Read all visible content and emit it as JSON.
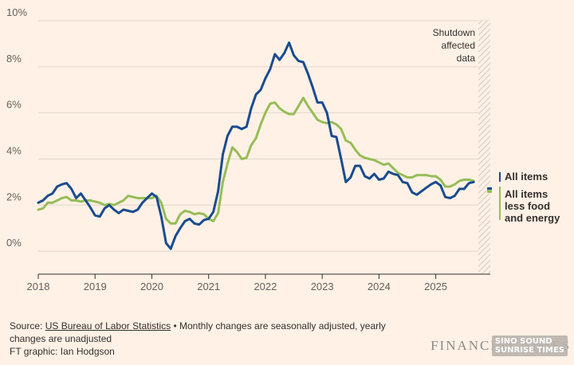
{
  "chart_data": {
    "type": "line",
    "ylim": [
      -1,
      10
    ],
    "xlim": [
      2018.0,
      2025.96
    ],
    "yticks": [
      0,
      2,
      4,
      6,
      8,
      10
    ],
    "ytick_labels": [
      "0%",
      "2%",
      "4%",
      "6%",
      "8%",
      "10%"
    ],
    "xticks": [
      2018,
      2019,
      2020,
      2021,
      2022,
      2023,
      2024,
      2025
    ],
    "xtick_labels": [
      "2018",
      "2019",
      "2020",
      "2021",
      "2022",
      "2023",
      "2024",
      "2025"
    ],
    "shutdown_start": 2025.75,
    "shutdown_label": [
      "Shutdown",
      "affected",
      "data"
    ],
    "series": [
      {
        "name": "All items",
        "label_lines": [
          "All items"
        ],
        "color": "#1a4b8f",
        "start": 2018.0,
        "values": [
          2.1,
          2.2,
          2.4,
          2.5,
          2.8,
          2.9,
          2.95,
          2.7,
          2.3,
          2.5,
          2.2,
          1.9,
          1.55,
          1.5,
          1.85,
          2.0,
          1.8,
          1.65,
          1.8,
          1.75,
          1.7,
          1.8,
          2.1,
          2.3,
          2.5,
          2.35,
          1.5,
          0.35,
          0.1,
          0.65,
          1.0,
          1.3,
          1.4,
          1.2,
          1.15,
          1.35,
          1.4,
          1.7,
          2.6,
          4.2,
          5.0,
          5.4,
          5.4,
          5.3,
          5.4,
          6.2,
          6.8,
          7.0,
          7.5,
          7.9,
          8.55,
          8.3,
          8.6,
          9.05,
          8.5,
          8.25,
          8.2,
          7.7,
          7.1,
          6.45,
          6.45,
          6.0,
          5.0,
          4.95,
          4.0,
          3.0,
          3.2,
          3.7,
          3.7,
          3.25,
          3.15,
          3.35,
          3.1,
          3.15,
          3.45,
          3.35,
          3.3,
          3.0,
          2.95,
          2.55,
          2.45,
          2.6,
          2.75,
          2.9,
          3.0,
          2.85,
          2.35,
          2.3,
          2.4,
          2.7,
          2.7,
          2.95,
          3.0
        ],
        "end_value": 2.7
      },
      {
        "name": "All items less food and energy",
        "label_lines": [
          "All items",
          "less food",
          "and energy"
        ],
        "color": "#96bd58",
        "start": 2018.0,
        "values": [
          1.8,
          1.85,
          2.1,
          2.1,
          2.2,
          2.3,
          2.35,
          2.2,
          2.2,
          2.15,
          2.2,
          2.2,
          2.15,
          2.1,
          2.0,
          2.05,
          2.0,
          2.1,
          2.2,
          2.4,
          2.35,
          2.3,
          2.3,
          2.3,
          2.3,
          2.4,
          2.1,
          1.4,
          1.2,
          1.2,
          1.6,
          1.75,
          1.7,
          1.6,
          1.65,
          1.6,
          1.4,
          1.3,
          1.65,
          3.0,
          3.8,
          4.5,
          4.3,
          4.0,
          4.05,
          4.6,
          4.9,
          5.5,
          6.0,
          6.4,
          6.45,
          6.2,
          6.05,
          5.95,
          5.95,
          6.3,
          6.65,
          6.3,
          6.0,
          5.7,
          5.6,
          5.55,
          5.6,
          5.5,
          5.3,
          4.8,
          4.7,
          4.4,
          4.15,
          4.05,
          4.0,
          3.95,
          3.85,
          3.75,
          3.8,
          3.6,
          3.4,
          3.3,
          3.2,
          3.2,
          3.3,
          3.3,
          3.3,
          3.25,
          3.25,
          3.1,
          2.8,
          2.8,
          2.9,
          3.05,
          3.1,
          3.1,
          3.05
        ],
        "end_value": 2.6
      }
    ]
  },
  "footer": {
    "source_prefix": "Source: ",
    "source_link": "US Bureau of Labor Statistics",
    "source_note": " • Monthly changes are seasonally adjusted, yearly changes are unadjusted",
    "credit": "FT graphic: Ian Hodgson",
    "brand": "FINANCIAL TIMES",
    "watermark": [
      "SINO SOUND",
      "SUNRISE TIMES"
    ]
  }
}
